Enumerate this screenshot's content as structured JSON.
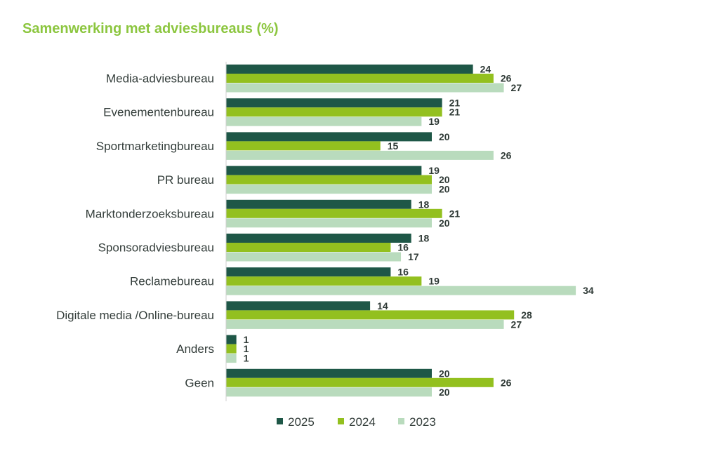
{
  "chart_data": {
    "type": "bar",
    "orientation": "horizontal",
    "title": "Samenwerking met adviesbureaus (%)",
    "categories": [
      "Media-adviesbureau",
      "Evenementenbureau",
      "Sportmarketingbureau",
      "PR bureau",
      "Marktonderzoeksbureau",
      "Sponsoradviesbureau",
      "Reclamebureau",
      "Digitale media /Online-bureau",
      "Anders",
      "Geen"
    ],
    "series": [
      {
        "name": "2025",
        "color": "#1e5747",
        "values": [
          24,
          21,
          20,
          19,
          18,
          18,
          16,
          14,
          1,
          20
        ]
      },
      {
        "name": "2024",
        "color": "#93c01f",
        "values": [
          26,
          21,
          15,
          20,
          21,
          16,
          19,
          28,
          1,
          26
        ]
      },
      {
        "name": "2023",
        "color": "#b9dbbd",
        "values": [
          27,
          19,
          26,
          20,
          20,
          17,
          34,
          27,
          1,
          20
        ]
      }
    ],
    "xlim": [
      0,
      40
    ],
    "grid": false,
    "legend_position": "bottom",
    "data_labels": true
  }
}
